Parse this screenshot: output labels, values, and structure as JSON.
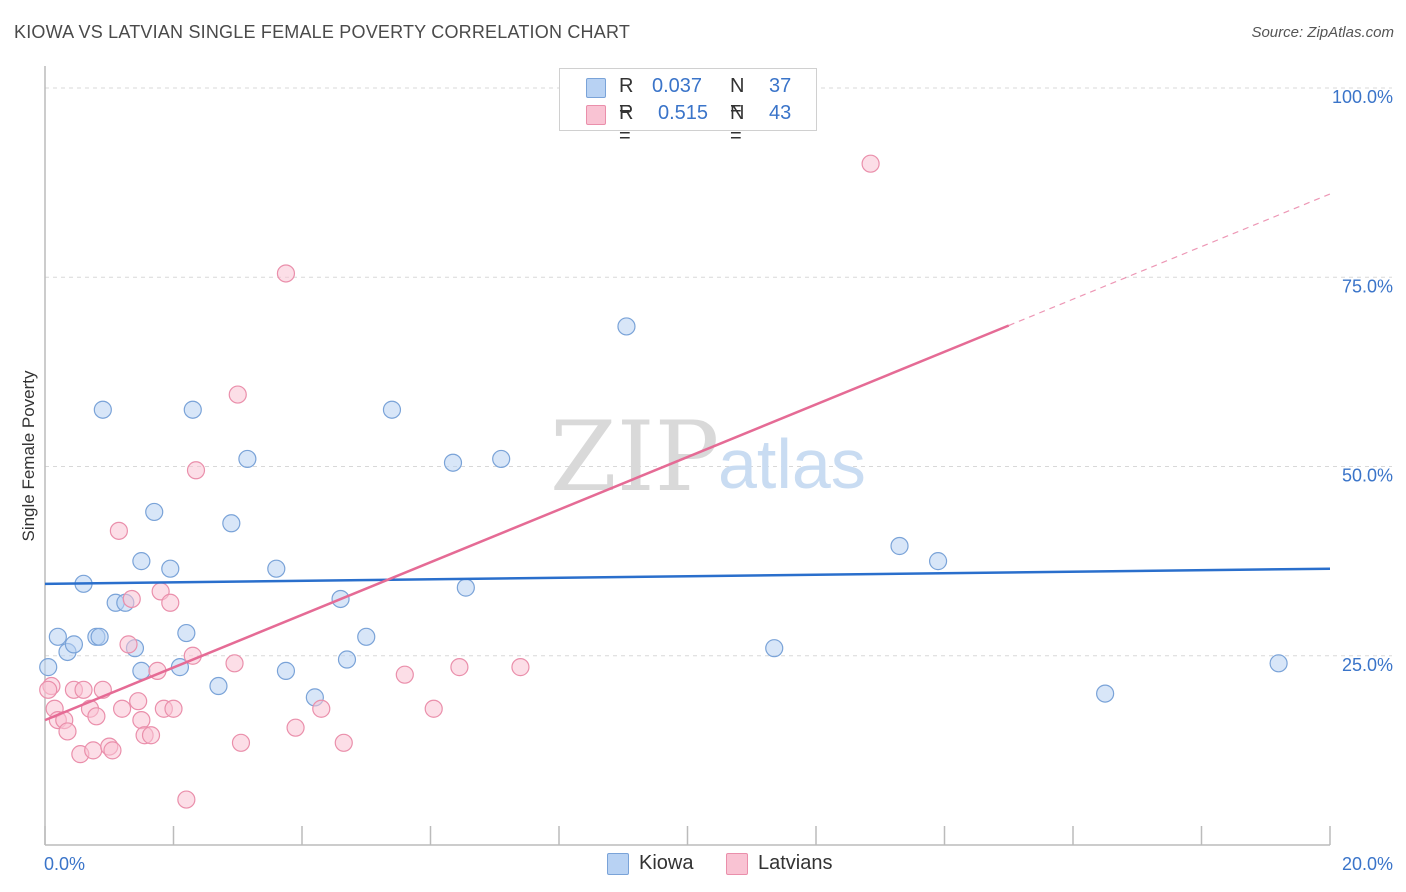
{
  "title": "KIOWA VS LATVIAN SINGLE FEMALE POVERTY CORRELATION CHART",
  "source": "Source: ZipAtlas.com",
  "watermark": {
    "zip": "ZIP",
    "atlas": "atlas"
  },
  "colors": {
    "kiowa_fill": "#b8d2f3",
    "kiowa_stroke": "#7aa3d8",
    "kiowa_line": "#2a6fcc",
    "latvian_fill": "#f9c3d3",
    "latvian_stroke": "#ea8fab",
    "latvian_line": "#e56b95",
    "value_text": "#3a74c9",
    "grid": "#d8d8d8",
    "axis": "#bbbbbb"
  },
  "legend": {
    "rows": [
      {
        "r_label": "R =",
        "r_value": "0.037",
        "n_label": "N =",
        "n_value": "37"
      },
      {
        "r_label": "R =",
        "r_value": "0.515",
        "n_label": "N =",
        "n_value": "43"
      }
    ]
  },
  "bottom_legend": {
    "kiowa": "Kiowa",
    "latvians": "Latvians"
  },
  "chart_data": {
    "type": "scatter",
    "title": "KIOWA VS LATVIAN SINGLE FEMALE POVERTY CORRELATION CHART",
    "xlabel": "",
    "ylabel": "Single Female Poverty",
    "xlim": [
      0,
      20
    ],
    "ylim": [
      0,
      100
    ],
    "x_tick_labels": [
      {
        "value": 0,
        "label": "0.0%"
      },
      {
        "value": 20,
        "label": "20.0%"
      }
    ],
    "y_tick_labels": [
      {
        "value": 25,
        "label": "25.0%"
      },
      {
        "value": 50,
        "label": "50.0%"
      },
      {
        "value": 75,
        "label": "75.0%"
      },
      {
        "value": 100,
        "label": "100.0%"
      }
    ],
    "series": [
      {
        "name": "Kiowa",
        "r": 0.037,
        "n": 37,
        "trend": {
          "x0": 0,
          "y0": 34.5,
          "x1": 20,
          "y1": 36.5,
          "solid_to": 20
        },
        "points": [
          [
            0.05,
            23.5
          ],
          [
            0.2,
            27.5
          ],
          [
            0.35,
            25.5
          ],
          [
            0.45,
            26.5
          ],
          [
            0.6,
            34.5
          ],
          [
            0.8,
            27.5
          ],
          [
            0.9,
            57.5
          ],
          [
            1.1,
            32.0
          ],
          [
            1.25,
            32.0
          ],
          [
            1.4,
            26.0
          ],
          [
            1.5,
            23.0
          ],
          [
            1.7,
            44.0
          ],
          [
            1.95,
            36.5
          ],
          [
            2.1,
            23.5
          ],
          [
            2.2,
            28.0
          ],
          [
            2.3,
            57.5
          ],
          [
            2.7,
            21.0
          ],
          [
            2.9,
            42.5
          ],
          [
            3.15,
            51.0
          ],
          [
            3.6,
            36.5
          ],
          [
            3.75,
            23.0
          ],
          [
            4.2,
            19.5
          ],
          [
            4.6,
            32.5
          ],
          [
            4.7,
            24.5
          ],
          [
            5.0,
            27.5
          ],
          [
            5.4,
            57.5
          ],
          [
            6.35,
            50.5
          ],
          [
            6.55,
            34.0
          ],
          [
            7.1,
            51.0
          ],
          [
            9.05,
            68.5
          ],
          [
            11.35,
            26.0
          ],
          [
            13.3,
            39.5
          ],
          [
            13.9,
            37.5
          ],
          [
            16.5,
            20.0
          ],
          [
            19.2,
            24.0
          ],
          [
            1.5,
            37.5
          ],
          [
            0.85,
            27.5
          ]
        ]
      },
      {
        "name": "Latvians",
        "r": 0.515,
        "n": 43,
        "trend": {
          "x0": 0,
          "y0": 16.5,
          "x1": 20,
          "y1": 86.0,
          "solid_to": 15.0
        },
        "points": [
          [
            0.1,
            21.0
          ],
          [
            0.15,
            18.0
          ],
          [
            0.2,
            16.5
          ],
          [
            0.3,
            16.5
          ],
          [
            0.35,
            15.0
          ],
          [
            0.45,
            20.5
          ],
          [
            0.55,
            12.0
          ],
          [
            0.6,
            20.5
          ],
          [
            0.7,
            18.0
          ],
          [
            0.75,
            12.5
          ],
          [
            0.8,
            17.0
          ],
          [
            0.9,
            20.5
          ],
          [
            1.0,
            13.0
          ],
          [
            1.05,
            12.5
          ],
          [
            1.15,
            41.5
          ],
          [
            1.2,
            18.0
          ],
          [
            1.3,
            26.5
          ],
          [
            1.35,
            32.5
          ],
          [
            1.45,
            19.0
          ],
          [
            1.5,
            16.5
          ],
          [
            1.55,
            14.5
          ],
          [
            1.65,
            14.5
          ],
          [
            1.75,
            23.0
          ],
          [
            1.8,
            33.5
          ],
          [
            1.85,
            18.0
          ],
          [
            1.95,
            32.0
          ],
          [
            2.0,
            18.0
          ],
          [
            2.2,
            6.0
          ],
          [
            2.3,
            25.0
          ],
          [
            2.35,
            49.5
          ],
          [
            2.95,
            24.0
          ],
          [
            3.0,
            59.5
          ],
          [
            3.05,
            13.5
          ],
          [
            3.75,
            75.5
          ],
          [
            3.9,
            15.5
          ],
          [
            4.3,
            18.0
          ],
          [
            4.65,
            13.5
          ],
          [
            5.6,
            22.5
          ],
          [
            6.05,
            18.0
          ],
          [
            6.45,
            23.5
          ],
          [
            7.4,
            23.5
          ],
          [
            12.85,
            90.0
          ],
          [
            0.05,
            20.5
          ]
        ]
      }
    ]
  }
}
